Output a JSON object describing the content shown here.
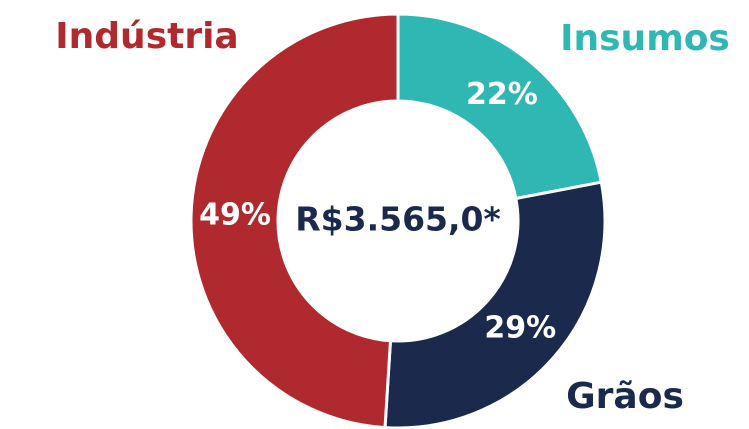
{
  "chart_data": {
    "type": "pie",
    "center_label": "R$3.565,0*",
    "categories": [
      "Insumos",
      "Grãos",
      "Indústria"
    ],
    "values": [
      22,
      29,
      49
    ],
    "value_labels": [
      "22%",
      "29%",
      "49%"
    ],
    "colors": [
      "#2fb7b4",
      "#1b294d",
      "#b0292e"
    ]
  }
}
